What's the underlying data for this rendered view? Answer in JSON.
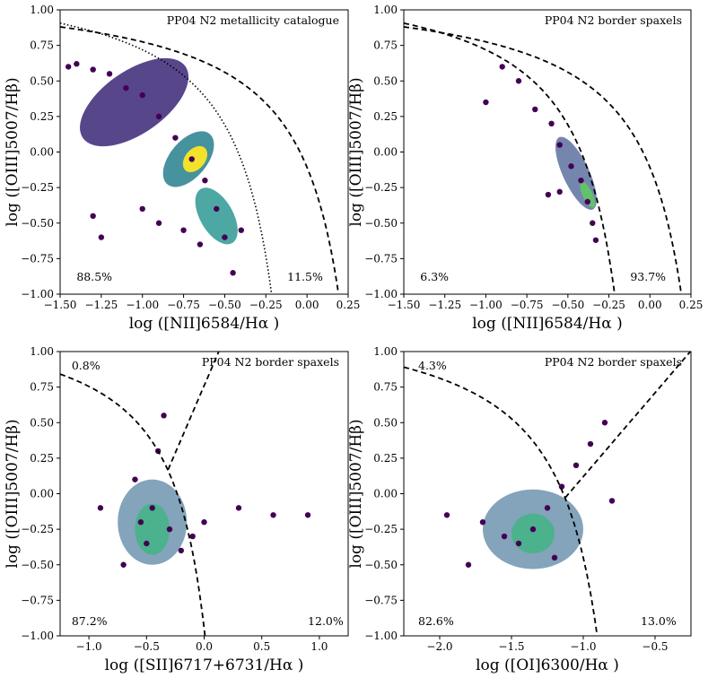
{
  "chart_data": [
    {
      "type": "scatter",
      "title": "PP04 N2 metallicity catalogue",
      "xlabel": "log ([NII]6584/Hα )",
      "ylabel": "log ([OIII]5007/Hβ)",
      "xlim": [
        -1.5,
        0.25
      ],
      "ylim": [
        -1.0,
        1.0
      ],
      "xticks": [
        "-1.50",
        "-1.25",
        "-1.00",
        "-0.75",
        "-0.50",
        "-0.25",
        "0.00",
        "0.25"
      ],
      "yticks": [
        "-1.00",
        "-0.75",
        "-0.50",
        "-0.25",
        "0.00",
        "0.25",
        "0.50",
        "0.75",
        "1.00"
      ],
      "annotations": [
        {
          "text": "88.5%",
          "x": -1.4,
          "y": -0.88
        },
        {
          "text": "11.5%",
          "x": -0.12,
          "y": -0.88
        }
      ],
      "demarcation_lines": [
        "Kauffmann03",
        "Kewley01"
      ],
      "series": [
        {
          "name": "spaxels (hexbin density)",
          "points": [
            [
              -1.45,
              0.6
            ],
            [
              -1.4,
              0.62
            ],
            [
              -1.3,
              0.58
            ],
            [
              -1.2,
              0.55
            ],
            [
              -1.1,
              0.45
            ],
            [
              -1.0,
              0.4
            ],
            [
              -0.9,
              0.25
            ],
            [
              -0.8,
              0.1
            ],
            [
              -0.7,
              -0.05
            ],
            [
              -0.62,
              -0.2
            ],
            [
              -0.55,
              -0.4
            ],
            [
              -0.5,
              -0.6
            ],
            [
              -0.45,
              -0.85
            ],
            [
              -1.3,
              -0.45
            ],
            [
              -1.25,
              -0.6
            ],
            [
              -1.0,
              -0.4
            ],
            [
              -0.9,
              -0.5
            ],
            [
              -0.75,
              -0.55
            ],
            [
              -0.65,
              -0.65
            ],
            [
              -0.4,
              -0.55
            ]
          ]
        }
      ]
    },
    {
      "type": "scatter",
      "title": "PP04 N2 border spaxels",
      "xlabel": "log ([NII]6584/Hα )",
      "ylabel": "log ([OIII]5007/Hβ)",
      "xlim": [
        -1.5,
        0.25
      ],
      "ylim": [
        -1.0,
        1.0
      ],
      "xticks": [
        "-1.50",
        "-1.25",
        "-1.00",
        "-0.75",
        "-0.50",
        "-0.25",
        "0.00",
        "0.25"
      ],
      "yticks": [
        "-1.00",
        "-0.75",
        "-0.50",
        "-0.25",
        "0.00",
        "0.25",
        "0.50",
        "0.75",
        "1.00"
      ],
      "annotations": [
        {
          "text": "6.3%",
          "x": -1.4,
          "y": -0.88
        },
        {
          "text": "93.7%",
          "x": -0.12,
          "y": -0.88
        }
      ],
      "demarcation_lines": [
        "Kauffmann03",
        "Kewley01"
      ],
      "series": [
        {
          "name": "border spaxels (hexbin density)",
          "points": [
            [
              -0.9,
              0.6
            ],
            [
              -0.8,
              0.5
            ],
            [
              -0.7,
              0.3
            ],
            [
              -0.6,
              0.2
            ],
            [
              -0.55,
              0.05
            ],
            [
              -0.48,
              -0.1
            ],
            [
              -0.42,
              -0.2
            ],
            [
              -0.38,
              -0.35
            ],
            [
              -0.35,
              -0.5
            ],
            [
              -0.33,
              -0.62
            ],
            [
              -1.0,
              0.35
            ],
            [
              -0.62,
              -0.3
            ],
            [
              -0.55,
              -0.28
            ]
          ]
        }
      ]
    },
    {
      "type": "scatter",
      "title": "PP04 N2 border spaxels",
      "xlabel": "log ([SII]6717+6731/Hα )",
      "ylabel": "log ([OIII]5007/Hβ)",
      "xlim": [
        -1.25,
        1.25
      ],
      "ylim": [
        -1.0,
        1.0
      ],
      "xticks": [
        "-1.0",
        "-0.5",
        "0.0",
        "0.5",
        "1.0"
      ],
      "yticks": [
        "-1.00",
        "-0.75",
        "-0.50",
        "-0.25",
        "0.00",
        "0.25",
        "0.50",
        "0.75",
        "1.00"
      ],
      "annotations": [
        {
          "text": "0.8%",
          "x": -1.15,
          "y": 0.9
        },
        {
          "text": "87.2%",
          "x": -1.15,
          "y": -0.9
        },
        {
          "text": "12.0%",
          "x": 0.9,
          "y": -0.9
        }
      ],
      "demarcation_lines": [
        "Kewley01",
        "Seyfert-LINER"
      ],
      "series": [
        {
          "name": "border spaxels (hexbin density)",
          "points": [
            [
              -0.6,
              0.1
            ],
            [
              -0.55,
              -0.2
            ],
            [
              -0.5,
              -0.35
            ],
            [
              -0.45,
              -0.1
            ],
            [
              -0.4,
              0.3
            ],
            [
              -0.3,
              -0.25
            ],
            [
              -0.2,
              -0.4
            ],
            [
              -0.1,
              -0.3
            ],
            [
              0.0,
              -0.2
            ],
            [
              0.3,
              -0.1
            ],
            [
              0.6,
              -0.15
            ],
            [
              0.9,
              -0.15
            ],
            [
              -0.9,
              -0.1
            ],
            [
              -0.7,
              -0.5
            ],
            [
              -0.35,
              0.55
            ]
          ]
        }
      ]
    },
    {
      "type": "scatter",
      "title": "PP04 N2 border spaxels",
      "xlabel": "log ([OI]6300/Hα )",
      "ylabel": "log ([OIII]5007/Hβ)",
      "xlim": [
        -2.25,
        -0.25
      ],
      "ylim": [
        -1.0,
        1.0
      ],
      "xticks": [
        "-2.0",
        "-1.5",
        "-1.0",
        "-0.5"
      ],
      "yticks": [
        "-1.00",
        "-0.75",
        "-0.50",
        "-0.25",
        "0.00",
        "0.25",
        "0.50",
        "0.75",
        "1.00"
      ],
      "annotations": [
        {
          "text": "4.3%",
          "x": -2.15,
          "y": 0.9
        },
        {
          "text": "82.6%",
          "x": -2.15,
          "y": -0.9
        },
        {
          "text": "13.0%",
          "x": -0.6,
          "y": -0.9
        }
      ],
      "demarcation_lines": [
        "Kewley01",
        "Seyfert-LINER"
      ],
      "series": [
        {
          "name": "border spaxels (hexbin density)",
          "points": [
            [
              -1.7,
              -0.2
            ],
            [
              -1.55,
              -0.3
            ],
            [
              -1.45,
              -0.35
            ],
            [
              -1.35,
              -0.25
            ],
            [
              -1.25,
              -0.1
            ],
            [
              -1.15,
              0.05
            ],
            [
              -1.05,
              0.2
            ],
            [
              -0.95,
              0.35
            ],
            [
              -0.85,
              0.5
            ],
            [
              -1.8,
              -0.5
            ],
            [
              -1.2,
              -0.45
            ],
            [
              -0.8,
              -0.05
            ],
            [
              -1.95,
              -0.15
            ]
          ]
        }
      ]
    }
  ]
}
